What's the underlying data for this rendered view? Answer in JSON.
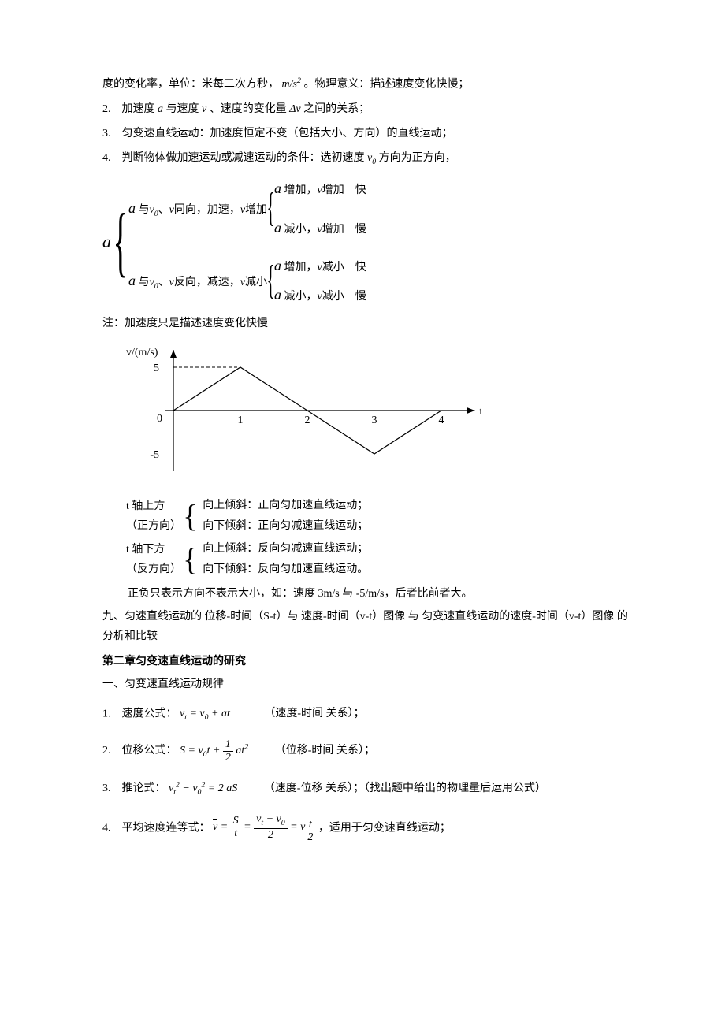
{
  "line_top_1": "度的变化率，单位：米每二次方秒，",
  "line_top_unit_1": "m",
  "line_top_unit_slash": "/",
  "line_top_unit_2": "s",
  "line_top_unit_exp": "2",
  "line_top_2": " 。物理意义：描述速度变化快慢；",
  "item2_a": "2.　加速度",
  "item2_b": "与速度",
  "item2_c": "、速度的变化量",
  "item2_d": "之间的关系；",
  "sym_a": "a",
  "sym_v": "v",
  "sym_dv": "Δv",
  "sym_v0": "v",
  "sym_v0_sub": "0",
  "item3": "3.　匀变速直线运动：加速度恒定不变（包括大小、方向）的直线运动；",
  "item4_a": "4.　判断物体做加速运动或减速运动的条件：选初速度",
  "item4_b": "方向为正方向，",
  "tree": {
    "root": "a",
    "b1_a": "a",
    "b1_txt1": " 与",
    "b1_v0": "v",
    "b1_v0s": "0",
    "b1_txt2": "、",
    "b1_v": "v",
    "b1_txt3": "同向，加速，",
    "b1_vinc": "v",
    "b1_txt4": "增加",
    "b1c1_a": "a",
    "b1c1_txt": " 增加，",
    "b1c1_v": "v",
    "b1c1_txt2": "增加　快",
    "b1c2_a": "a",
    "b1c2_txt": " 减小，",
    "b1c2_v": "v",
    "b1c2_txt2": "增加　慢",
    "b2_a": "a",
    "b2_txt1": " 与",
    "b2_v0": "v",
    "b2_v0s": "0",
    "b2_txt2": "、",
    "b2_v": "v",
    "b2_txt3": "反向，减速，",
    "b2_vdec": "v",
    "b2_txt4": "减小",
    "b2c1_a": "a",
    "b2c1_txt": " 增加，",
    "b2c1_v": "v",
    "b2c1_txt2": "减小　快",
    "b2c2_a": "a",
    "b2c2_txt": " 减小，",
    "b2c2_v": "v",
    "b2c2_txt2": "减小　慢"
  },
  "note1": "注：加速度只是描述速度变化快慢",
  "chart": {
    "type": "line",
    "y_label": "v/(m/s)",
    "x_label": "t/s",
    "xlim": [
      0,
      4.5
    ],
    "ylim": [
      -6,
      6
    ],
    "x_ticks": [
      0,
      1,
      2,
      3,
      4
    ],
    "y_ticks": [
      -5,
      0,
      5
    ],
    "points_x": [
      0,
      1,
      2,
      3,
      4
    ],
    "points_y": [
      0,
      5,
      0,
      -5,
      0
    ],
    "axis_color": "#000000",
    "line_color": "#000000",
    "line_width": 1.2,
    "background_color": "#ffffff",
    "tick_fontsize": 14,
    "label_fontsize": 14
  },
  "bracket1_label1": "t 轴上方",
  "bracket1_label2": "（正方向）",
  "bracket1_line1": "向上倾斜：正向匀加速直线运动；",
  "bracket1_line2": "向下倾斜：正向匀减速直线运动；",
  "bracket2_label1": "t 轴下方",
  "bracket2_label2": "（反方向）",
  "bracket2_line1": "向上倾斜：反向匀减速直线运动；",
  "bracket2_line2": "向下倾斜：反向匀加速直线运动。",
  "signnote": "正负只表示方向不表示大小，如：速度 3m/s 与 -5/m/s，后者比前者大。",
  "nine": "九、匀速直线运动的 位移-时间（S-t）与 速度-时间（v-t）图像 与 匀变速直线运动的速度-时间（v-t）图像 的分析和比较",
  "chapter2": "第二章匀变速直线运动的研究",
  "sec1": "一、匀变速直线运动规律",
  "f1_label": "1.　速度公式：",
  "f1_eq_vt": "v",
  "f1_eq_t": "t",
  "f1_eq_eq": " = ",
  "f1_eq_v0": "v",
  "f1_eq_0": "0",
  "f1_eq_plus": " + ",
  "f1_eq_at": "at",
  "f1_rel": "（速度-时间 关系）；",
  "f2_label": "2.　位移公式：",
  "f2_S": "S",
  "f2_eq": " = ",
  "f2_v0": "v",
  "f2_0": "0",
  "f2_t": "t",
  "f2_plus": " + ",
  "f2_frac_num": "1",
  "f2_frac_den": "2",
  "f2_at": "at",
  "f2_exp": "2",
  "f2_rel": "（位移-时间 关系）；",
  "f3_label": "3.　推论式：",
  "f3_vt": "v",
  "f3_t": "t",
  "f3_exp1": "2",
  "f3_minus": " − ",
  "f3_v0": "v",
  "f3_0": "0",
  "f3_exp2": "2",
  "f3_eq": " = 2",
  "f3_aS": "aS",
  "f3_rel": "（速度-位移 关系）；（找出题中给出的物理量后运用公式）",
  "f4_label": "4.　平均速度连等式：",
  "f4_vbar": "v",
  "f4_eq1": " = ",
  "f4_S": "S",
  "f4_t": "t",
  "f4_eq2": " = ",
  "f4_num_v": "v",
  "f4_num_t": "t",
  "f4_num_plus": " + ",
  "f4_num_v0": "v",
  "f4_num_0": "0",
  "f4_den2": "2",
  "f4_eq3": " = ",
  "f4_vhalf": "v",
  "f4_half_num": "t",
  "f4_half_den": "2",
  "f4_trail": " ，适用于匀变速直线运动；"
}
